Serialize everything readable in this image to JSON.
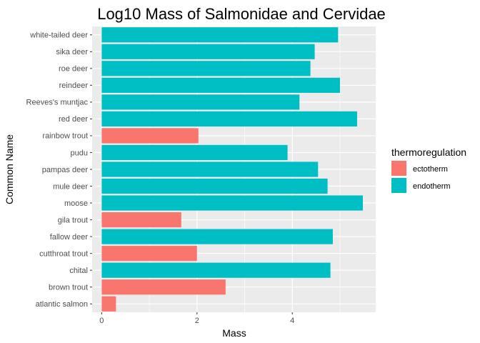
{
  "chart_data": {
    "type": "bar",
    "orientation": "horizontal",
    "title": "Log10 Mass of Salmonidae and Cervidae",
    "xlabel": "Mass",
    "ylabel": "Common Name",
    "xlim": [
      -0.2,
      5.75
    ],
    "xticks": [
      0,
      2,
      4
    ],
    "grid": true,
    "legend": {
      "title": "thermoregulation",
      "position": "right",
      "entries": [
        {
          "label": "ectotherm",
          "color": "#F8766D"
        },
        {
          "label": "endotherm",
          "color": "#00BFC4"
        }
      ]
    },
    "bars": [
      {
        "name": "atlantic salmon",
        "value": 0.3,
        "group": "ectotherm"
      },
      {
        "name": "brown trout",
        "value": 2.6,
        "group": "ectotherm"
      },
      {
        "name": "chital",
        "value": 4.8,
        "group": "endotherm"
      },
      {
        "name": "cutthroat trout",
        "value": 2.0,
        "group": "ectotherm"
      },
      {
        "name": "fallow deer",
        "value": 4.85,
        "group": "endotherm"
      },
      {
        "name": "gila trout",
        "value": 1.67,
        "group": "ectotherm"
      },
      {
        "name": "moose",
        "value": 5.48,
        "group": "endotherm"
      },
      {
        "name": "mule deer",
        "value": 4.74,
        "group": "endotherm"
      },
      {
        "name": "pampas deer",
        "value": 4.54,
        "group": "endotherm"
      },
      {
        "name": "pudu",
        "value": 3.9,
        "group": "endotherm"
      },
      {
        "name": "rainbow trout",
        "value": 2.03,
        "group": "ectotherm"
      },
      {
        "name": "red deer",
        "value": 5.36,
        "group": "endotherm"
      },
      {
        "name": "Reeves's muntjac",
        "value": 4.15,
        "group": "endotherm"
      },
      {
        "name": "reindeer",
        "value": 5.0,
        "group": "endotherm"
      },
      {
        "name": "roe deer",
        "value": 4.38,
        "group": "endotherm"
      },
      {
        "name": "sika deer",
        "value": 4.47,
        "group": "endotherm"
      },
      {
        "name": "white-tailed deer",
        "value": 4.96,
        "group": "endotherm"
      }
    ]
  }
}
